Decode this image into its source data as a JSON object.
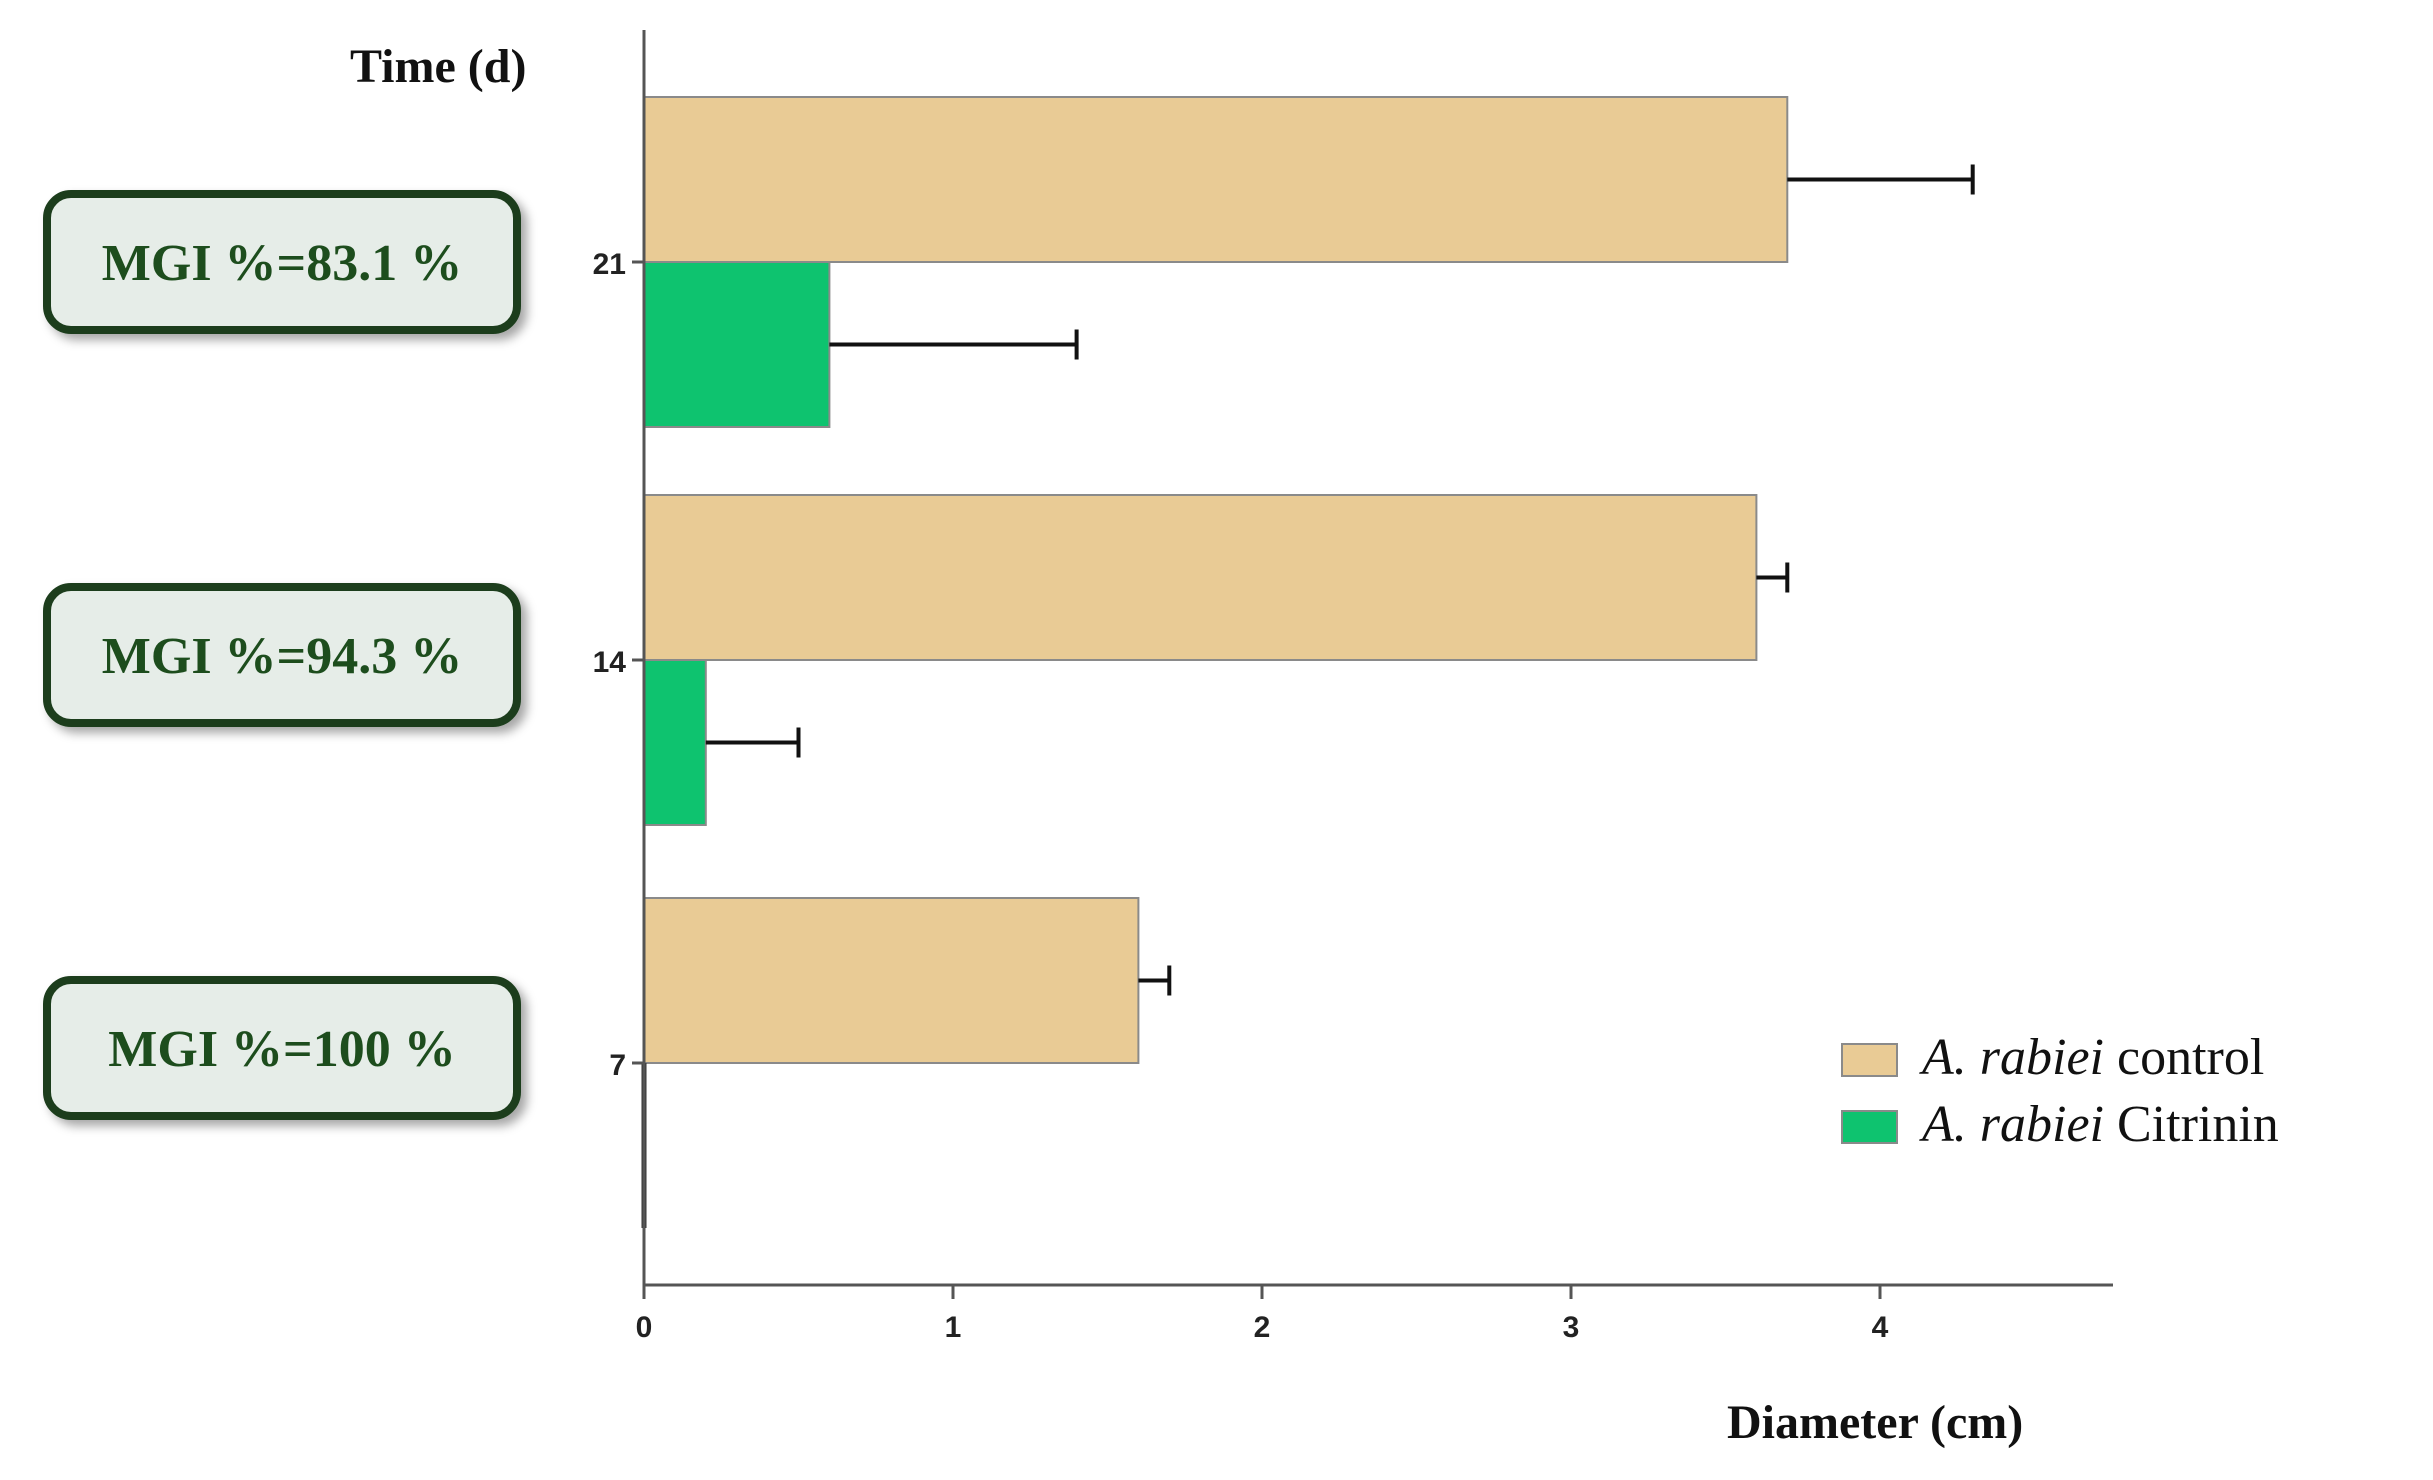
{
  "chart_data": {
    "type": "bar",
    "orientation": "horizontal",
    "categories": [
      "21",
      "14",
      "7"
    ],
    "series": [
      {
        "name": "A. rabiei control",
        "name_italic": "A. rabiei",
        "name_plain": "control",
        "color": "#e9cb95",
        "values": [
          3.7,
          3.6,
          1.6
        ],
        "errors": [
          0.6,
          0.1,
          0.1
        ]
      },
      {
        "name": "A. rabiei Citrinin",
        "name_italic": "A. rabiei",
        "name_plain": "Citrinin",
        "color": "#0ec36f",
        "values": [
          0.6,
          0.2,
          0.0
        ],
        "errors": [
          0.8,
          0.3,
          0.0
        ]
      }
    ],
    "ylabel": "Time (d)",
    "xlabel": "Diameter (cm)",
    "xlim": [
      0,
      4.75
    ],
    "xticks": [
      0,
      1,
      2,
      3,
      4
    ],
    "grid": false,
    "legend_position": "bottom-right",
    "annotations": [
      "MGI %=83.1 %",
      "MGI %=94.3 %",
      "MGI %=100 %"
    ],
    "annotation_box_fill": "#e6ede8",
    "annotation_box_stroke": "#1d3d1d",
    "annotation_text_color": "#1d4d1d"
  }
}
